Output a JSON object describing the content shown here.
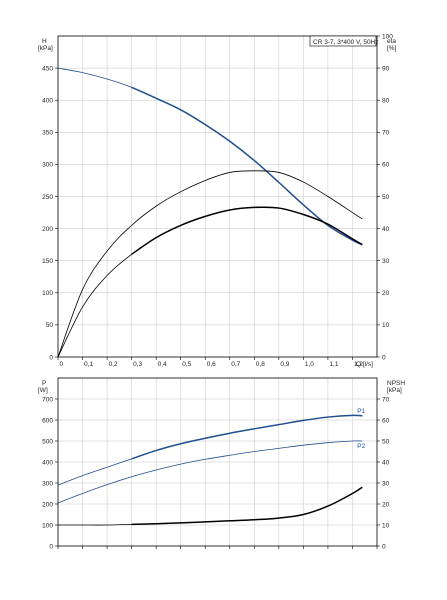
{
  "chart_data": [
    {
      "type": "line",
      "legend_box": "CR 3-7, 3*400 V, 50Hz",
      "legend_placement": "top-right",
      "grid": true,
      "colors": {
        "blue": "#1f4f8f",
        "black": "#000000",
        "grid": "#c6c6c6"
      },
      "x_axis": {
        "label": "Q [l/s]",
        "range": [
          0,
          1.3
        ],
        "ticks": [
          "0",
          "0,1",
          "0,2",
          "0,3",
          "0,4",
          "0,5",
          "0,6",
          "0,7",
          "0,8",
          "0,9",
          "1,0",
          "1,1",
          "1,2"
        ]
      },
      "left_axis": {
        "label_line1": "H",
        "label_line2": "[kPa]",
        "range": [
          0,
          500
        ],
        "ticks": [
          "0",
          "50",
          "100",
          "150",
          "200",
          "250",
          "300",
          "350",
          "400",
          "450"
        ]
      },
      "right_axis": {
        "label_line1": "eta",
        "label_line2": "[%]",
        "range": [
          0,
          100
        ],
        "ticks": [
          "0",
          "10",
          "20",
          "30",
          "40",
          "50",
          "60",
          "70",
          "80",
          "90",
          "100"
        ]
      },
      "series": [
        {
          "axis": "left",
          "color": "#1f4f8f",
          "x": [
            0,
            0.1,
            0.2,
            0.3,
            0.4,
            0.5,
            0.6,
            0.7,
            0.8,
            0.9,
            1.0,
            1.1,
            1.2,
            1.24
          ],
          "y": [
            450,
            443,
            433,
            420,
            403,
            385,
            362,
            336,
            306,
            272,
            237,
            205,
            182,
            175
          ]
        },
        {
          "axis": "right",
          "color": "#000000",
          "x": [
            0,
            0.1,
            0.2,
            0.3,
            0.4,
            0.5,
            0.6,
            0.7,
            0.8,
            0.9,
            1.0,
            1.1,
            1.2,
            1.24
          ],
          "y": [
            0,
            21,
            33,
            41,
            47,
            51.5,
            55,
            57.5,
            58,
            57.5,
            54.5,
            50,
            45,
            43
          ]
        },
        {
          "axis": "left",
          "color": "#000000",
          "x": [
            0,
            0.1,
            0.2,
            0.3,
            0.4,
            0.5,
            0.6,
            0.7,
            0.8,
            0.9,
            1.0,
            1.1,
            1.2,
            1.24
          ],
          "y": [
            0,
            78,
            127,
            160,
            186,
            205,
            219,
            229,
            233,
            232,
            222,
            207,
            184,
            175
          ]
        }
      ]
    },
    {
      "type": "line",
      "grid": true,
      "colors": {
        "blue": "#1f4f8f",
        "black": "#000000",
        "grid": "#c6c6c6"
      },
      "x_axis": {
        "range": [
          0,
          1.3
        ]
      },
      "left_axis": {
        "label_line1": "P",
        "label_line2": "[W]",
        "range": [
          0,
          800
        ],
        "ticks": [
          "0",
          "100",
          "200",
          "300",
          "400",
          "500",
          "600",
          "700"
        ]
      },
      "right_axis": {
        "label_line1": "NPSH",
        "label_line2": "[kPa]",
        "range": [
          0,
          80
        ],
        "ticks": [
          "0",
          "10",
          "20",
          "30",
          "40",
          "50",
          "60",
          "70"
        ]
      },
      "series": [
        {
          "name": "P1",
          "axis": "left",
          "color": "#1f4f8f",
          "x": [
            0,
            0.1,
            0.2,
            0.3,
            0.4,
            0.5,
            0.6,
            0.7,
            0.8,
            0.9,
            1.0,
            1.1,
            1.2,
            1.24
          ],
          "y": [
            290,
            335,
            375,
            415,
            455,
            487,
            513,
            537,
            558,
            578,
            598,
            614,
            622,
            620
          ]
        },
        {
          "name": "P2",
          "axis": "left",
          "color": "#1f4f8f",
          "x": [
            0,
            0.1,
            0.2,
            0.3,
            0.4,
            0.5,
            0.6,
            0.7,
            0.8,
            0.9,
            1.0,
            1.1,
            1.2,
            1.24
          ],
          "y": [
            205,
            250,
            292,
            330,
            362,
            390,
            413,
            432,
            450,
            465,
            480,
            492,
            500,
            500
          ]
        },
        {
          "axis": "right",
          "color": "#000000",
          "x": [
            0,
            0.1,
            0.2,
            0.3,
            0.4,
            0.5,
            0.6,
            0.7,
            0.8,
            0.9,
            1.0,
            1.1,
            1.2,
            1.24
          ],
          "y": [
            10,
            10,
            10,
            10.3,
            10.6,
            11,
            11.5,
            12,
            12.5,
            13.3,
            15,
            19,
            25,
            28
          ]
        }
      ]
    }
  ]
}
